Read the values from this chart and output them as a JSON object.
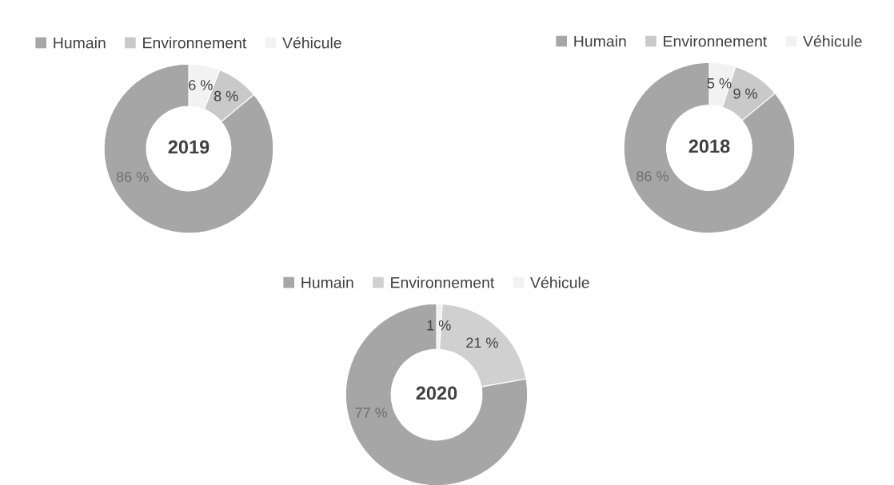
{
  "chart_data": [
    {
      "type": "donut",
      "title": "2019",
      "categories": [
        "Humain",
        "Environnement",
        "Véhicule"
      ],
      "values": [
        86,
        8,
        6
      ],
      "colors": [
        "#a6a6a6",
        "#c9c9c9",
        "#f2f2f2"
      ],
      "value_labels": [
        "86 %",
        "8 %",
        "6 %"
      ],
      "legend": "top"
    },
    {
      "type": "donut",
      "title": "2018",
      "categories": [
        "Humain",
        "Environnement",
        "Véhicule"
      ],
      "values": [
        86,
        9,
        5
      ],
      "colors": [
        "#a6a6a6",
        "#c9c9c9",
        "#f2f2f2"
      ],
      "value_labels": [
        "86 %",
        "9 %",
        "5 %"
      ],
      "legend": "top"
    },
    {
      "type": "donut",
      "title": "2020",
      "categories": [
        "Humain",
        "Environnement",
        "Véhicule"
      ],
      "values": [
        77,
        21,
        1
      ],
      "colors": [
        "#a6a6a6",
        "#d0d0d0",
        "#f2f2f2"
      ],
      "value_labels": [
        "77 %",
        "21 %",
        "1 %"
      ],
      "legend": "top"
    }
  ]
}
